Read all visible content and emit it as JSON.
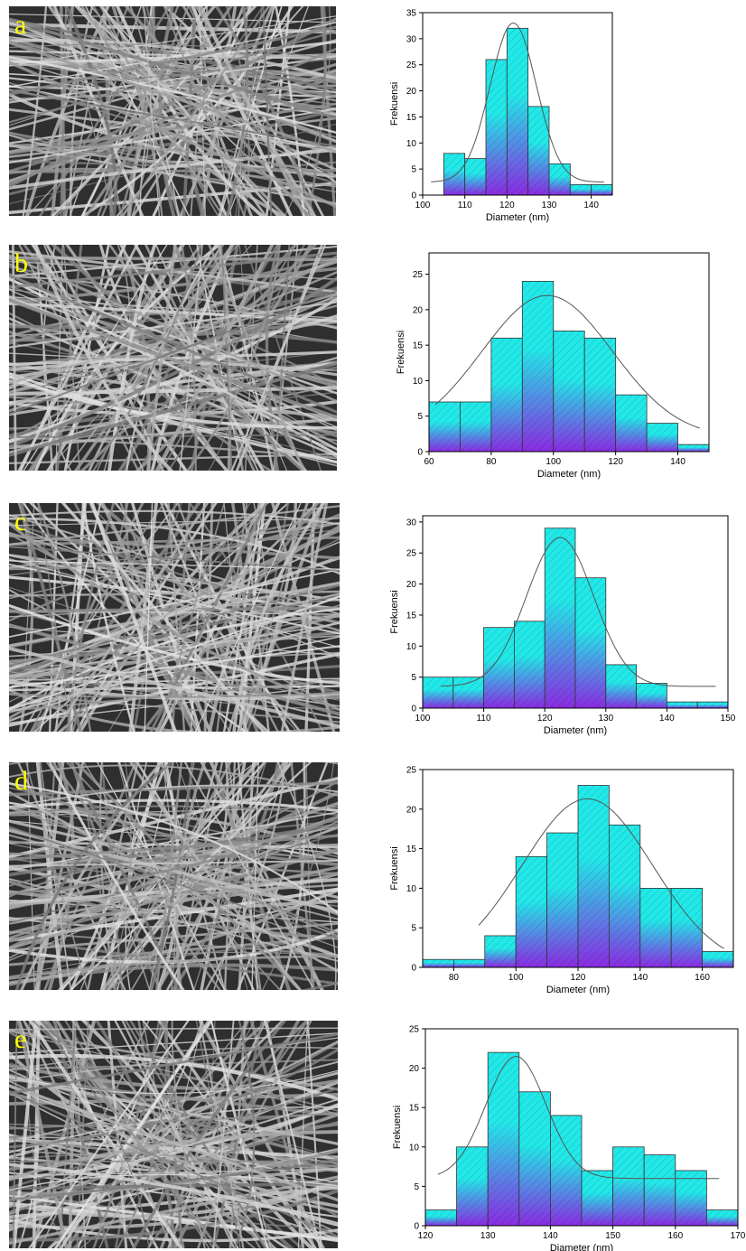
{
  "panels": [
    {
      "letter": "a"
    },
    {
      "letter": "b"
    },
    {
      "letter": "c"
    },
    {
      "letter": "d"
    },
    {
      "letter": "e"
    }
  ],
  "colors": {
    "bar_top": "#22e8e8",
    "bar_bottom": "#8a2be2",
    "curve": "#555555",
    "letter": "#ffff00"
  },
  "chart_data": [
    {
      "type": "bar",
      "xlabel": "Diameter (nm)",
      "ylabel": "Frekuensi",
      "xlim": [
        100,
        145
      ],
      "ylim": [
        0,
        35
      ],
      "xticks": [
        100,
        110,
        120,
        130,
        140
      ],
      "yticks": [
        0,
        5,
        10,
        15,
        20,
        25,
        30,
        35
      ],
      "bin_width": 5,
      "bins": [
        {
          "x": 107.5,
          "y": 8
        },
        {
          "x": 112.5,
          "y": 7
        },
        {
          "x": 117.5,
          "y": 26
        },
        {
          "x": 122.5,
          "y": 32
        },
        {
          "x": 127.5,
          "y": 17
        },
        {
          "x": 132.5,
          "y": 6
        },
        {
          "x": 137.5,
          "y": 2
        },
        {
          "x": 142.5,
          "y": 2
        }
      ],
      "fit": {
        "y0": 2.5,
        "center": 121.5,
        "amplitude": 30.5,
        "width": 5.5,
        "range": [
          102,
          143
        ]
      }
    },
    {
      "type": "bar",
      "xlabel": "Diameter (nm)",
      "ylabel": "Frekuensi",
      "xlim": [
        60,
        150
      ],
      "ylim": [
        0,
        28
      ],
      "xticks": [
        60,
        80,
        100,
        120,
        140
      ],
      "yticks": [
        0,
        5,
        10,
        15,
        20,
        25
      ],
      "bin_width": 10,
      "bins": [
        {
          "x": 65,
          "y": 7
        },
        {
          "x": 75,
          "y": 7
        },
        {
          "x": 85,
          "y": 16
        },
        {
          "x": 95,
          "y": 24
        },
        {
          "x": 105,
          "y": 17
        },
        {
          "x": 115,
          "y": 16
        },
        {
          "x": 125,
          "y": 8
        },
        {
          "x": 135,
          "y": 4
        },
        {
          "x": 145,
          "y": 1
        }
      ],
      "fit": {
        "y0": 2.0,
        "center": 98,
        "amplitude": 20,
        "width": 21,
        "range": [
          62,
          147
        ]
      }
    },
    {
      "type": "bar",
      "xlabel": "Diameter (nm)",
      "ylabel": "Frekuensi",
      "xlim": [
        100,
        150
      ],
      "ylim": [
        0,
        31
      ],
      "xticks": [
        100,
        110,
        120,
        130,
        140,
        150
      ],
      "yticks": [
        0,
        5,
        10,
        15,
        20,
        25,
        30
      ],
      "bin_width": 5,
      "bins": [
        {
          "x": 102.5,
          "y": 5
        },
        {
          "x": 107.5,
          "y": 5
        },
        {
          "x": 112.5,
          "y": 13
        },
        {
          "x": 117.5,
          "y": 14
        },
        {
          "x": 122.5,
          "y": 29
        },
        {
          "x": 127.5,
          "y": 21
        },
        {
          "x": 132.5,
          "y": 7
        },
        {
          "x": 137.5,
          "y": 4
        },
        {
          "x": 142.5,
          "y": 1
        },
        {
          "x": 147.5,
          "y": 1
        }
      ],
      "fit": {
        "y0": 3.5,
        "center": 122.5,
        "amplitude": 24,
        "width": 5.5,
        "range": [
          103,
          148
        ]
      }
    },
    {
      "type": "bar",
      "xlabel": "Diameter (nm)",
      "ylabel": "Frekuensi",
      "xlim": [
        70,
        170
      ],
      "ylim": [
        0,
        25
      ],
      "xticks": [
        80,
        100,
        120,
        140,
        160
      ],
      "yticks": [
        0,
        5,
        10,
        15,
        20,
        25
      ],
      "bin_width": 10,
      "bins": [
        {
          "x": 75,
          "y": 1
        },
        {
          "x": 85,
          "y": 1
        },
        {
          "x": 95,
          "y": 4
        },
        {
          "x": 105,
          "y": 14
        },
        {
          "x": 115,
          "y": 17
        },
        {
          "x": 125,
          "y": 23
        },
        {
          "x": 135,
          "y": 18
        },
        {
          "x": 145,
          "y": 10
        },
        {
          "x": 155,
          "y": 10
        },
        {
          "x": 165,
          "y": 2
        }
      ],
      "fit": {
        "y0": 0,
        "center": 123,
        "amplitude": 21.3,
        "width": 21,
        "range": [
          88,
          167
        ]
      }
    },
    {
      "type": "bar",
      "xlabel": "Diameter (nm)",
      "ylabel": "Frekuensi",
      "xlim": [
        120,
        170
      ],
      "ylim": [
        0,
        25
      ],
      "xticks": [
        120,
        130,
        140,
        150,
        160,
        170
      ],
      "yticks": [
        0,
        5,
        10,
        15,
        20,
        25
      ],
      "bin_width": 5,
      "bins": [
        {
          "x": 122.5,
          "y": 2
        },
        {
          "x": 127.5,
          "y": 10
        },
        {
          "x": 132.5,
          "y": 22
        },
        {
          "x": 137.5,
          "y": 17
        },
        {
          "x": 142.5,
          "y": 14
        },
        {
          "x": 147.5,
          "y": 7
        },
        {
          "x": 152.5,
          "y": 10
        },
        {
          "x": 157.5,
          "y": 9
        },
        {
          "x": 162.5,
          "y": 7
        },
        {
          "x": 167.5,
          "y": 2
        }
      ],
      "fit": {
        "y0": 6,
        "center": 134.5,
        "amplitude": 15.5,
        "width": 4.8,
        "range": [
          122,
          167
        ]
      }
    }
  ]
}
